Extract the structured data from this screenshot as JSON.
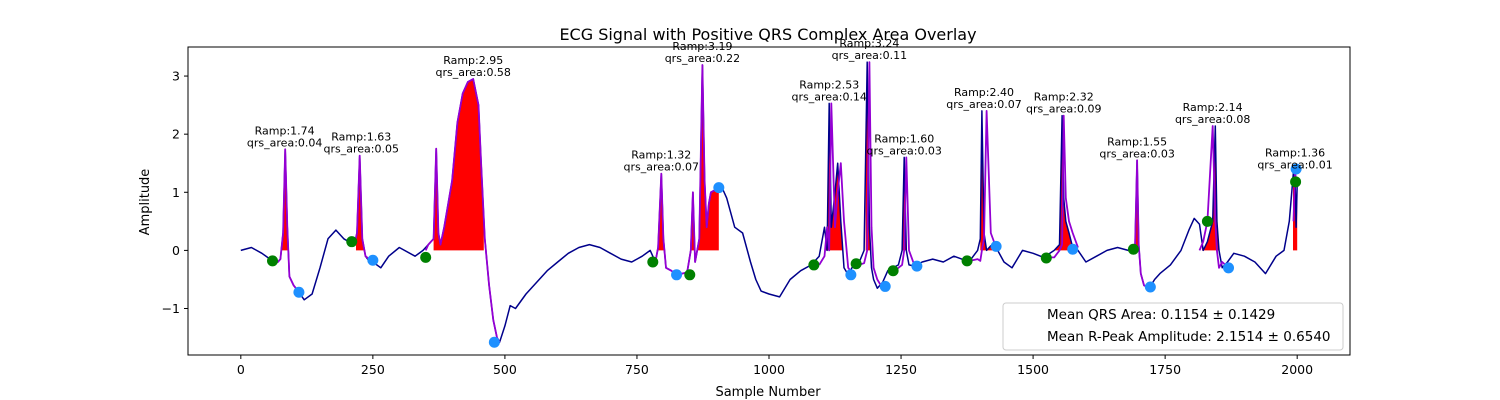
{
  "chart_data": {
    "type": "line",
    "title": "ECG Signal with Positive QRS Complex Area Overlay",
    "xlabel": "Sample Number",
    "ylabel": "Amplitude",
    "xlim": [
      -100,
      2100
    ],
    "ylim": [
      -1.8,
      3.5
    ],
    "x_ticks": [
      0,
      250,
      500,
      750,
      1000,
      1250,
      1500,
      1750,
      2000
    ],
    "y_ticks": [
      -1,
      0,
      1,
      2,
      3
    ],
    "y_tick_labels": [
      "−1",
      "0",
      "1",
      "2",
      "3"
    ],
    "grid": false,
    "colors": {
      "signal": "#00008b",
      "qrs_segment": "#9400d3",
      "qrs_area": "#ff0000",
      "q_s_marker": "#1e90ff",
      "onset_marker": "#008000"
    },
    "signal": {
      "x": [
        0,
        20,
        40,
        60,
        70,
        75,
        80,
        84,
        88,
        92,
        100,
        110,
        120,
        135,
        150,
        165,
        180,
        195,
        210,
        215,
        220,
        225,
        230,
        236,
        240,
        250,
        265,
        280,
        300,
        330,
        345,
        355,
        365,
        370,
        374,
        378,
        385,
        400,
        410,
        420,
        430,
        440,
        450,
        455,
        462,
        470,
        478,
        485,
        490,
        500,
        510,
        520,
        540,
        560,
        580,
        600,
        620,
        640,
        660,
        680,
        700,
        720,
        740,
        760,
        775,
        785,
        790,
        796,
        800,
        805,
        815,
        825,
        835,
        845,
        852,
        856,
        860,
        868,
        874,
        878,
        882,
        886,
        890,
        900,
        910,
        920,
        935,
        950,
        965,
        975,
        985,
        1000,
        1020,
        1040,
        1060,
        1080,
        1095,
        1105,
        1110,
        1114,
        1118,
        1125,
        1130,
        1136,
        1142,
        1150,
        1160,
        1170,
        1180,
        1186,
        1190,
        1194,
        1198,
        1205,
        1215,
        1225,
        1235,
        1245,
        1252,
        1256,
        1260,
        1265,
        1275,
        1290,
        1310,
        1330,
        1350,
        1365,
        1380,
        1395,
        1400,
        1403,
        1407,
        1412,
        1420,
        1430,
        1445,
        1460,
        1480,
        1500,
        1520,
        1540,
        1550,
        1555,
        1558,
        1562,
        1568,
        1575,
        1585,
        1600,
        1620,
        1640,
        1660,
        1680,
        1693,
        1697,
        1700,
        1704,
        1710,
        1720,
        1730,
        1740,
        1760,
        1780,
        1795,
        1805,
        1815,
        1822,
        1830,
        1840,
        1845,
        1848,
        1852,
        1858,
        1868,
        1880,
        1900,
        1920,
        1940,
        1960,
        1975,
        1985,
        1993,
        1996,
        1998,
        2000
      ],
      "y": [
        0.0,
        0.05,
        -0.05,
        -0.18,
        -0.2,
        -0.15,
        0.3,
        1.74,
        0.4,
        -0.45,
        -0.6,
        -0.72,
        -0.85,
        -0.75,
        -0.3,
        0.2,
        0.35,
        0.2,
        0.12,
        0.1,
        0.3,
        1.63,
        0.2,
        -0.1,
        -0.15,
        -0.2,
        -0.3,
        -0.1,
        0.05,
        -0.1,
        0.0,
        0.1,
        0.2,
        1.75,
        0.3,
        0.1,
        0.4,
        1.2,
        2.2,
        2.7,
        2.9,
        2.95,
        2.5,
        1.5,
        0.2,
        -0.6,
        -1.2,
        -1.5,
        -1.58,
        -1.3,
        -0.95,
        -1.0,
        -0.75,
        -0.55,
        -0.35,
        -0.2,
        -0.05,
        0.05,
        0.1,
        0.05,
        -0.05,
        -0.15,
        -0.2,
        -0.1,
        0.0,
        -0.2,
        0.05,
        1.32,
        0.2,
        -0.3,
        -0.35,
        -0.42,
        -0.4,
        -0.38,
        0.0,
        1.0,
        -0.2,
        0.2,
        3.19,
        1.2,
        0.4,
        0.8,
        1.0,
        1.05,
        1.1,
        0.9,
        0.4,
        0.3,
        -0.2,
        -0.5,
        -0.7,
        -0.75,
        -0.8,
        -0.5,
        -0.35,
        -0.25,
        -0.1,
        0.4,
        0.0,
        2.53,
        0.4,
        1.0,
        1.5,
        0.5,
        -0.3,
        -0.42,
        -0.25,
        -0.22,
        0.0,
        3.24,
        0.4,
        -0.3,
        -0.5,
        -0.65,
        -0.55,
        -0.35,
        -0.3,
        -0.25,
        0.0,
        1.6,
        0.0,
        -0.25,
        -0.27,
        -0.2,
        -0.15,
        -0.2,
        -0.1,
        -0.15,
        -0.18,
        0.0,
        0.2,
        2.4,
        0.3,
        0.0,
        0.08,
        0.05,
        -0.2,
        -0.3,
        0.0,
        -0.05,
        -0.12,
        0.0,
        0.1,
        2.32,
        0.9,
        0.5,
        0.3,
        0.05,
        0.0,
        -0.2,
        -0.1,
        0.0,
        0.05,
        0.0,
        0.03,
        1.55,
        0.1,
        -0.4,
        -0.6,
        -0.65,
        -0.5,
        -0.4,
        -0.25,
        0.0,
        0.35,
        0.55,
        0.45,
        0.0,
        0.15,
        0.5,
        2.14,
        0.5,
        0.0,
        -0.3,
        -0.2,
        -0.05,
        -0.1,
        -0.2,
        -0.4,
        -0.1,
        0.0,
        0.5,
        1.36,
        1.2,
        0.4,
        1.15
      ]
    },
    "qrs_segments": [
      {
        "x": [
          60,
          70,
          75,
          80,
          84,
          88,
          92,
          100,
          110
        ],
        "y": [
          -0.18,
          -0.2,
          -0.15,
          0.3,
          1.74,
          0.4,
          -0.45,
          -0.6,
          -0.72
        ]
      },
      {
        "x": [
          210,
          215,
          220,
          225,
          230,
          236,
          250
        ],
        "y": [
          0.12,
          0.1,
          0.3,
          1.63,
          0.2,
          -0.1,
          -0.2
        ]
      },
      {
        "x": [
          350,
          355,
          365,
          370,
          374,
          378,
          385,
          400,
          410,
          420,
          430,
          440,
          450,
          455,
          462,
          470,
          478,
          485,
          490
        ],
        "y": [
          0.0,
          0.1,
          0.2,
          1.75,
          0.3,
          0.1,
          0.4,
          1.2,
          2.2,
          2.7,
          2.9,
          2.95,
          2.5,
          1.5,
          0.2,
          -0.6,
          -1.2,
          -1.5,
          -1.58
        ]
      },
      {
        "x": [
          780,
          785,
          790,
          796,
          800,
          805,
          815,
          825,
          835,
          845,
          852,
          856,
          860,
          868,
          874,
          878,
          882,
          886,
          890,
          900,
          905
        ],
        "y": [
          -0.2,
          -0.2,
          0.05,
          1.32,
          0.2,
          -0.3,
          -0.35,
          -0.42,
          -0.4,
          -0.38,
          0.0,
          1.0,
          -0.2,
          0.2,
          3.19,
          1.2,
          0.4,
          0.8,
          1.0,
          1.05,
          1.08
        ]
      },
      {
        "x": [
          1095,
          1105,
          1110,
          1114,
          1118,
          1125,
          1130,
          1136,
          1142,
          1150,
          1160
        ],
        "y": [
          -0.25,
          -0.1,
          0.4,
          0.0,
          2.53,
          0.4,
          1.0,
          1.5,
          0.5,
          -0.3,
          -0.42
        ]
      },
      {
        "x": [
          1170,
          1180,
          1186,
          1190,
          1194,
          1198,
          1205,
          1215,
          1225
        ],
        "y": [
          -0.25,
          -0.22,
          0.0,
          3.24,
          0.4,
          -0.3,
          -0.5,
          -0.65,
          -0.6
        ]
      },
      {
        "x": [
          1240,
          1245,
          1252,
          1256,
          1260,
          1265,
          1275,
          1280
        ],
        "y": [
          -0.35,
          -0.3,
          -0.25,
          0.0,
          1.6,
          0.0,
          -0.25,
          -0.27
        ]
      },
      {
        "x": [
          1380,
          1395,
          1400,
          1403,
          1407,
          1412,
          1420,
          1430
        ],
        "y": [
          -0.18,
          -0.15,
          -0.18,
          0.0,
          0.2,
          2.4,
          0.3,
          0.05
        ]
      },
      {
        "x": [
          1530,
          1540,
          1550,
          1555,
          1558,
          1562,
          1568,
          1575,
          1585
        ],
        "y": [
          -0.12,
          -0.12,
          0.0,
          0.1,
          2.32,
          0.9,
          0.5,
          0.3,
          0.05
        ]
      },
      {
        "x": [
          1680,
          1693,
          1697,
          1700,
          1704,
          1710,
          1720,
          1730
        ],
        "y": [
          0.0,
          0.03,
          1.55,
          0.1,
          -0.4,
          -0.6,
          -0.65,
          -0.6
        ]
      },
      {
        "x": [
          1815,
          1822,
          1830,
          1840,
          1845,
          1848,
          1852,
          1858,
          1870
        ],
        "y": [
          0.0,
          0.15,
          0.5,
          2.14,
          0.5,
          0.0,
          -0.3,
          -0.2,
          -0.3
        ]
      },
      {
        "x": [
          1993,
          1996,
          1998,
          2000
        ],
        "y": [
          0.5,
          1.36,
          1.2,
          1.15
        ]
      }
    ],
    "qrs_area_regions": [
      {
        "x_start": 78,
        "x_end": 90
      },
      {
        "x_start": 218,
        "x_end": 234
      },
      {
        "x_start": 365,
        "x_end": 460
      },
      {
        "x_start": 788,
        "x_end": 905
      },
      {
        "x_start": 1108,
        "x_end": 1148
      },
      {
        "x_start": 1183,
        "x_end": 1197
      },
      {
        "x_start": 1250,
        "x_end": 1266
      },
      {
        "x_start": 1400,
        "x_end": 1430
      },
      {
        "x_start": 1540,
        "x_end": 1585
      },
      {
        "x_start": 1690,
        "x_end": 1702
      },
      {
        "x_start": 1820,
        "x_end": 1852
      },
      {
        "x_start": 1992,
        "x_end": 2000
      }
    ],
    "q_s_markers": {
      "x": [
        110,
        250,
        480,
        825,
        905,
        1155,
        1220,
        1280,
        1430,
        1575,
        1722,
        1870,
        1998
      ],
      "y": [
        -0.72,
        -0.17,
        -1.58,
        -0.42,
        1.08,
        -0.42,
        -0.62,
        -0.27,
        0.07,
        0.02,
        -0.63,
        -0.3,
        1.4
      ]
    },
    "onset_markers": {
      "x": [
        60,
        210,
        350,
        780,
        850,
        1085,
        1165,
        1235,
        1375,
        1525,
        1690,
        1830,
        1997
      ],
      "y": [
        -0.18,
        0.15,
        -0.12,
        -0.2,
        -0.42,
        -0.25,
        -0.23,
        -0.35,
        -0.18,
        -0.13,
        0.02,
        0.5,
        1.18
      ]
    },
    "annotations": [
      {
        "x": 83,
        "y": 1.74,
        "line1": "Ramp:1.74",
        "line2": "qrs_area:0.04"
      },
      {
        "x": 228,
        "y": 1.63,
        "line1": "Ramp:1.63",
        "line2": "qrs_area:0.05"
      },
      {
        "x": 440,
        "y": 2.95,
        "line1": "Ramp:2.95",
        "line2": "qrs_area:0.58"
      },
      {
        "x": 796,
        "y": 1.32,
        "line1": "Ramp:1.32",
        "line2": "qrs_area:0.07"
      },
      {
        "x": 874,
        "y": 3.19,
        "line1": "Ramp:3.19",
        "line2": "qrs_area:0.22"
      },
      {
        "x": 1114,
        "y": 2.53,
        "line1": "Ramp:2.53",
        "line2": "qrs_area:0.14"
      },
      {
        "x": 1190,
        "y": 3.24,
        "line1": "Ramp:3.24",
        "line2": "qrs_area:0.11"
      },
      {
        "x": 1256,
        "y": 1.6,
        "line1": "Ramp:1.60",
        "line2": "qrs_area:0.03"
      },
      {
        "x": 1407,
        "y": 2.4,
        "line1": "Ramp:2.40",
        "line2": "qrs_area:0.07"
      },
      {
        "x": 1558,
        "y": 2.32,
        "line1": "Ramp:2.32",
        "line2": "qrs_area:0.09"
      },
      {
        "x": 1697,
        "y": 1.55,
        "line1": "Ramp:1.55",
        "line2": "qrs_area:0.03"
      },
      {
        "x": 1840,
        "y": 2.14,
        "line1": "Ramp:2.14",
        "line2": "qrs_area:0.08"
      },
      {
        "x": 1996,
        "y": 1.36,
        "line1": "Ramp:1.36",
        "line2": "qrs_area:0.01"
      }
    ],
    "legend": {
      "placement": "lower-right",
      "entries": [
        "Mean QRS Area: 0.1154 ± 0.1429",
        "Mean R-Peak Amplitude: 2.1514 ± 0.6540"
      ]
    }
  }
}
